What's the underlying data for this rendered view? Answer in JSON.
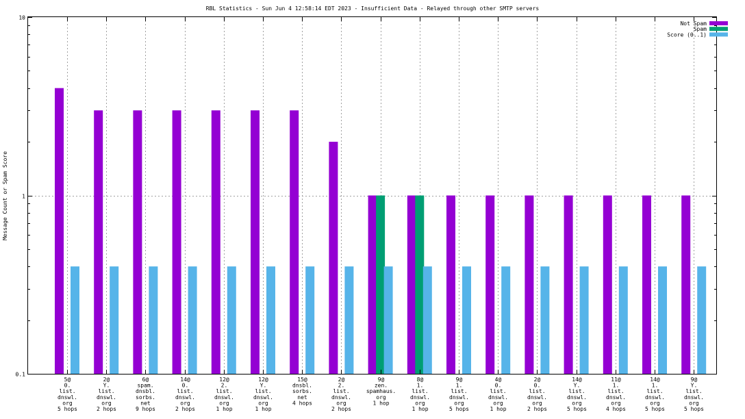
{
  "chart_data": {
    "type": "bar",
    "title": "RBL Statistics - Sun Jun  4 12:58:14 EDT 2023 - Insufficient Data - Relayed through other SMTP servers",
    "xlabel": "",
    "ylabel": "Message Count or Spam Score",
    "y_scale": "log",
    "ylim": [
      0.1,
      10
    ],
    "yticks": [
      {
        "value": 0.1,
        "label": "0.1"
      },
      {
        "value": 1,
        "label": "1"
      },
      {
        "value": 10,
        "label": "10"
      }
    ],
    "grid": true,
    "legend_position": "top-right",
    "categories": [
      [
        "5@",
        "0.",
        "list.",
        "dnswl.",
        "org",
        "5 hops"
      ],
      [
        "2@",
        "Y.",
        "list.",
        "dnswl.",
        "org",
        "2 hops"
      ],
      [
        "6@",
        "spam.",
        "dnsbl.",
        "sorbs.",
        "net",
        "9 hops"
      ],
      [
        "14@",
        "0.",
        "list.",
        "dnswl.",
        "org",
        "2 hops"
      ],
      [
        "12@",
        "2.",
        "list.",
        "dnswl.",
        "org",
        "1 hop"
      ],
      [
        "12@",
        "Y.",
        "list.",
        "dnswl.",
        "org",
        "1 hop"
      ],
      [
        "15@",
        "dnsbl.",
        "sorbs.",
        "net",
        "4 hops"
      ],
      [
        "2@",
        "2.",
        "list.",
        "dnswl.",
        "org",
        "2 hops"
      ],
      [
        "9@",
        "zen.",
        "spamhaus.",
        "org",
        "1 hop"
      ],
      [
        "8@",
        "1.",
        "list.",
        "dnswl.",
        "org",
        "1 hop"
      ],
      [
        "9@",
        "1.",
        "list.",
        "dnswl.",
        "org",
        "5 hops"
      ],
      [
        "4@",
        "0.",
        "list.",
        "dnswl.",
        "org",
        "1 hop"
      ],
      [
        "2@",
        "0.",
        "list.",
        "dnswl.",
        "org",
        "2 hops"
      ],
      [
        "14@",
        "Y.",
        "list.",
        "dnswl.",
        "org",
        "5 hops"
      ],
      [
        "11@",
        "1.",
        "list.",
        "dnswl.",
        "org",
        "4 hops"
      ],
      [
        "14@",
        "1.",
        "list.",
        "dnswl.",
        "org",
        "5 hops"
      ],
      [
        "9@",
        "Y.",
        "list.",
        "dnswl.",
        "org",
        "5 hops"
      ]
    ],
    "series": [
      {
        "name": "Not Spam",
        "color": "#9400d3",
        "values": [
          4,
          3,
          3,
          3,
          3,
          3,
          3,
          2,
          1,
          1,
          1,
          1,
          1,
          1,
          1,
          1,
          1
        ]
      },
      {
        "name": "Spam",
        "color": "#009e73",
        "values": [
          null,
          null,
          null,
          null,
          null,
          null,
          null,
          null,
          1,
          1,
          null,
          null,
          null,
          null,
          null,
          null,
          null
        ]
      },
      {
        "name": "Score (0..1)",
        "color": "#56b4e9",
        "values": [
          0.4,
          0.4,
          0.4,
          0.4,
          0.4,
          0.4,
          0.4,
          0.4,
          0.4,
          0.4,
          0.4,
          0.4,
          0.4,
          0.4,
          0.4,
          0.4,
          0.4
        ]
      }
    ]
  }
}
